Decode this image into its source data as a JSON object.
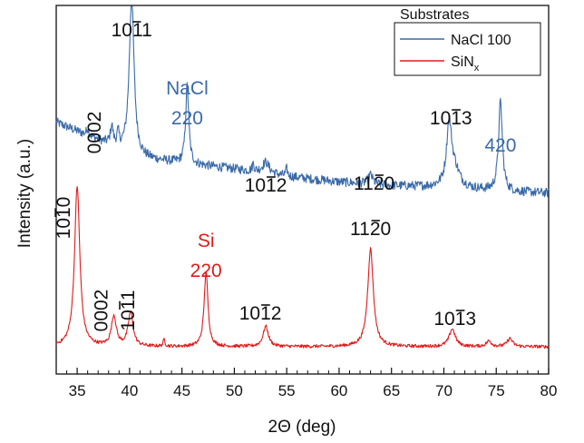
{
  "chart_data": {
    "type": "line",
    "xlabel": "2Θ (deg)",
    "ylabel": "Intensity (a.u.)",
    "xlim": [
      33,
      80
    ],
    "xticks": [
      "35",
      "40",
      "45",
      "50",
      "55",
      "60",
      "65",
      "70",
      "75",
      "80"
    ],
    "y_ticks_shown": false,
    "legend": {
      "title": "Substrates",
      "position": "top-right",
      "entries": [
        {
          "label": "NaCl 100",
          "color": "#3a6aa8"
        },
        {
          "label_main": "SiN",
          "label_sub": "x",
          "color": "#e01b1b"
        }
      ]
    },
    "series": [
      {
        "name": "NaCl 100",
        "color": "#3a6aa8",
        "baseline": [
          [
            33,
            0.62
          ],
          [
            38,
            0.5
          ],
          [
            40.5,
            0.43
          ],
          [
            45,
            0.4
          ],
          [
            50,
            0.37
          ],
          [
            55,
            0.33
          ],
          [
            60,
            0.3
          ],
          [
            65,
            0.28
          ],
          [
            70,
            0.27
          ],
          [
            75,
            0.25
          ],
          [
            80,
            0.24
          ]
        ],
        "peaks": [
          {
            "x": 36.0,
            "height": 0.04,
            "width": 0.12
          },
          {
            "x": 38.3,
            "height": 0.1,
            "width": 0.15
          },
          {
            "x": 38.9,
            "height": 0.07,
            "width": 0.12
          },
          {
            "x": 40.2,
            "height": 0.85,
            "width": 0.28
          },
          {
            "x": 45.5,
            "height": 0.42,
            "width": 0.18
          },
          {
            "x": 51.8,
            "height": 0.04,
            "width": 0.1
          },
          {
            "x": 53.0,
            "height": 0.06,
            "width": 0.4
          },
          {
            "x": 55.0,
            "height": 0.04,
            "width": 0.1
          },
          {
            "x": 63.0,
            "height": 0.05,
            "width": 0.25
          },
          {
            "x": 70.5,
            "height": 0.32,
            "width": 0.28
          },
          {
            "x": 71.0,
            "height": 0.1,
            "width": 0.6
          },
          {
            "x": 75.4,
            "height": 0.48,
            "width": 0.22
          }
        ],
        "noise": 0.025
      },
      {
        "name": "SiNx",
        "color": "#e01b1b",
        "baseline": [
          [
            33,
            0.0
          ],
          [
            80,
            0.0
          ]
        ],
        "peaks": [
          {
            "x": 35.0,
            "height": 1.18,
            "width": 0.3
          },
          {
            "x": 38.5,
            "height": 0.22,
            "width": 0.28
          },
          {
            "x": 40.1,
            "height": 0.25,
            "width": 0.28
          },
          {
            "x": 43.3,
            "height": 0.05,
            "width": 0.1
          },
          {
            "x": 47.3,
            "height": 0.55,
            "width": 0.22
          },
          {
            "x": 53.0,
            "height": 0.15,
            "width": 0.3
          },
          {
            "x": 63.0,
            "height": 0.72,
            "width": 0.32
          },
          {
            "x": 70.8,
            "height": 0.13,
            "width": 0.35
          },
          {
            "x": 74.3,
            "height": 0.04,
            "width": 0.3
          },
          {
            "x": 76.3,
            "height": 0.06,
            "width": 0.3
          }
        ],
        "noise": 0.012
      }
    ],
    "annotations": [
      {
        "series": "NaCl 100",
        "x": 40.2,
        "parts": [
          "10",
          "1",
          "1"
        ],
        "bar_index": 1,
        "color": "#111111",
        "rotated": false
      },
      {
        "series": "NaCl 100",
        "x": 38.3,
        "text": "0002",
        "color": "#111111",
        "rotated": true
      },
      {
        "series": "NaCl 100",
        "x": 45.5,
        "lines": [
          "NaCl",
          "220"
        ],
        "color": "#3a6aa8",
        "rotated": false
      },
      {
        "series": "NaCl 100",
        "x": 53.0,
        "parts": [
          "10",
          "1",
          "2"
        ],
        "bar_index": 1,
        "color": "#111111",
        "rotated": false
      },
      {
        "series": "NaCl 100",
        "x": 63.0,
        "parts": [
          "11",
          "2",
          "0"
        ],
        "bar_index": 1,
        "color": "#111111",
        "rotated": false
      },
      {
        "series": "NaCl 100",
        "x": 70.5,
        "parts": [
          "10",
          "1",
          "3"
        ],
        "bar_index": 1,
        "color": "#111111",
        "rotated": false
      },
      {
        "series": "NaCl 100",
        "x": 75.4,
        "text": "420",
        "color": "#3a6aa8",
        "rotated": false
      },
      {
        "series": "SiNx",
        "x": 35.0,
        "parts": [
          "10",
          "1",
          "0"
        ],
        "bar_index": 1,
        "color": "#111111",
        "rotated": true
      },
      {
        "series": "SiNx",
        "x": 38.5,
        "text": "0002",
        "color": "#111111",
        "rotated": true
      },
      {
        "series": "SiNx",
        "x": 40.1,
        "parts": [
          "10",
          "1",
          "1"
        ],
        "bar_index": 1,
        "color": "#111111",
        "rotated": true
      },
      {
        "series": "SiNx",
        "x": 47.3,
        "lines": [
          "Si",
          "220"
        ],
        "color": "#e01b1b",
        "rotated": false
      },
      {
        "series": "SiNx",
        "x": 53.0,
        "parts": [
          "10",
          "1",
          "2"
        ],
        "bar_index": 1,
        "color": "#111111",
        "rotated": false
      },
      {
        "series": "SiNx",
        "x": 63.0,
        "parts": [
          "11",
          "2",
          "0"
        ],
        "bar_index": 1,
        "color": "#111111",
        "rotated": false
      },
      {
        "series": "SiNx",
        "x": 70.8,
        "parts": [
          "10",
          "1",
          "3"
        ],
        "bar_index": 1,
        "color": "#111111",
        "rotated": false
      }
    ]
  }
}
